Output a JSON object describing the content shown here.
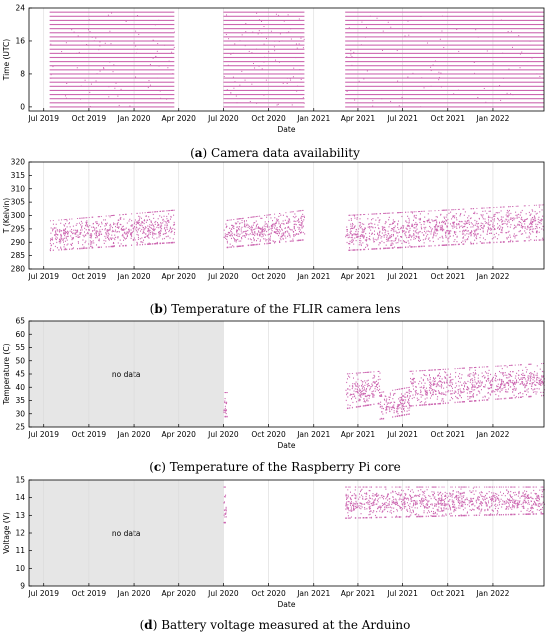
{
  "colors": {
    "data": "#cc66b0",
    "nodata_fill": "#e6e6e6",
    "grid": "#d9d9d9",
    "axis": "#000000"
  },
  "x_ticks": [
    "Jul 2019",
    "Oct 2019",
    "Jan 2020",
    "Apr 2020",
    "Jul 2020",
    "Oct 2020",
    "Jan 2021",
    "Apr 2021",
    "Jul 2021",
    "Oct 2021",
    "Jan 2022"
  ],
  "chart_data": [
    {
      "type": "scatter",
      "letter": "a",
      "caption": "Camera data availability",
      "xlabel": "Date",
      "ylabel": "Time (UTC)",
      "x_range": [
        "2019-06-01",
        "2022-04-15"
      ],
      "ylim": [
        -1,
        24
      ],
      "y_ticks": [
        0,
        8,
        16,
        24
      ],
      "grid": true,
      "data_periods": [
        [
          "2019-07-13",
          "2020-03-23"
        ],
        [
          "2020-07-01",
          "2020-12-13"
        ],
        [
          "2021-03-06",
          "2022-04-15"
        ]
      ],
      "y_values": [
        0,
        1,
        2,
        3,
        4,
        5,
        6,
        7,
        8,
        9,
        10,
        11,
        12,
        13,
        14,
        15,
        16,
        17,
        18,
        19,
        20,
        21,
        22,
        23
      ]
    },
    {
      "type": "scatter",
      "letter": "b",
      "caption": "Temperature of the FLIR camera lens",
      "xlabel": "",
      "ylabel": "T (Kelvin)",
      "x_range": [
        "2019-06-01",
        "2022-04-15"
      ],
      "ylim": [
        280,
        320
      ],
      "y_ticks": [
        280,
        285,
        290,
        295,
        300,
        305,
        310,
        315,
        320
      ],
      "grid": true,
      "segments": [
        {
          "start": "2019-07-13",
          "end": "2020-03-23",
          "low": [
            287,
            290
          ],
          "high": [
            298,
            302
          ]
        },
        {
          "start": "2020-07-01",
          "end": "2020-12-13",
          "low": [
            288,
            291
          ],
          "high": [
            298,
            302
          ]
        },
        {
          "start": "2021-03-06",
          "end": "2022-04-15",
          "low": [
            287,
            291
          ],
          "high": [
            300,
            304
          ]
        }
      ]
    },
    {
      "type": "scatter",
      "letter": "c",
      "caption": "Temperature of the Raspberry Pi core",
      "xlabel": "Date",
      "ylabel": "Temperature (C)",
      "x_range": [
        "2019-06-01",
        "2022-04-15"
      ],
      "ylim": [
        25,
        65
      ],
      "y_ticks": [
        25,
        30,
        35,
        40,
        45,
        50,
        55,
        60,
        65
      ],
      "grid": true,
      "no_data_period": [
        "2019-06-01",
        "2020-07-01"
      ],
      "no_data_label": "no data",
      "segments": [
        {
          "start": "2020-07-01",
          "end": "2020-07-08",
          "low": [
            29,
            29
          ],
          "high": [
            38,
            38
          ]
        },
        {
          "start": "2021-03-06",
          "end": "2021-05-15",
          "low": [
            32,
            34
          ],
          "high": [
            45,
            46
          ]
        },
        {
          "start": "2021-05-15",
          "end": "2021-07-15",
          "low": [
            28,
            30
          ],
          "high": [
            38,
            40
          ]
        },
        {
          "start": "2021-07-15",
          "end": "2022-04-15",
          "low": [
            33,
            37
          ],
          "high": [
            46,
            49
          ]
        }
      ]
    },
    {
      "type": "scatter",
      "letter": "d",
      "caption": "Battery voltage measured at the Arduino",
      "xlabel": "Date",
      "ylabel": "Voltage (V)",
      "x_range": [
        "2019-06-01",
        "2022-04-15"
      ],
      "ylim": [
        9,
        15
      ],
      "y_ticks": [
        9,
        10,
        11,
        12,
        13,
        14,
        15
      ],
      "grid": true,
      "no_data_period": [
        "2019-06-01",
        "2020-07-01"
      ],
      "no_data_label": "no data",
      "segments": [
        {
          "start": "2020-07-01",
          "end": "2020-07-06",
          "low": [
            12.6,
            12.6
          ],
          "high": [
            14.6,
            14.6
          ]
        },
        {
          "start": "2021-03-06",
          "end": "2022-04-15",
          "low": [
            12.85,
            13.1
          ],
          "high": [
            14.6,
            14.6
          ]
        }
      ]
    }
  ]
}
